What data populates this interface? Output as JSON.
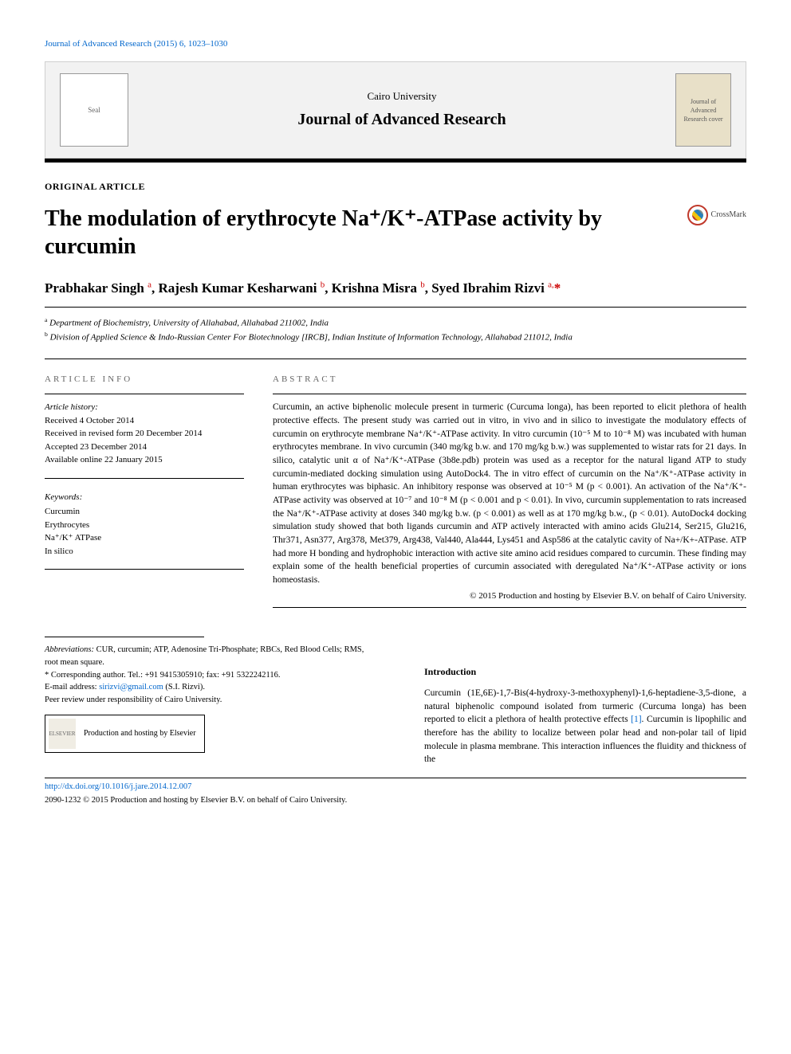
{
  "running_head": "Journal of Advanced Research (2015) 6, 1023–1030",
  "masthead": {
    "university": "Cairo University",
    "journal": "Journal of Advanced Research",
    "left_logo_alt": "Seal",
    "right_logo_alt": "Journal of Advanced Research cover"
  },
  "article_type": "ORIGINAL ARTICLE",
  "title": "The modulation of erythrocyte Na⁺/K⁺-ATPase activity by curcumin",
  "crossmark_label": "CrossMark",
  "authors_html": "Prabhakar Singh <sup>a</sup>, Rajesh Kumar Kesharwani <sup>b</sup>, Krishna Misra <sup>b</sup>, Syed Ibrahim Rizvi <sup>a,</sup><span class='star'>*</span>",
  "affiliations": [
    {
      "marker": "a",
      "text": "Department of Biochemistry, University of Allahabad, Allahabad 211002, India"
    },
    {
      "marker": "b",
      "text": "Division of Applied Science & Indo-Russian Center For Biotechnology [IRCB], Indian Institute of Information Technology, Allahabad 211012, India"
    }
  ],
  "article_info_head": "ARTICLE INFO",
  "history_label": "Article history:",
  "history": [
    "Received 4 October 2014",
    "Received in revised form 20 December 2014",
    "Accepted 23 December 2014",
    "Available online 22 January 2015"
  ],
  "keywords_label": "Keywords:",
  "keywords": [
    "Curcumin",
    "Erythrocytes",
    "Na⁺/K⁺ ATPase",
    "In silico"
  ],
  "abstract_head": "ABSTRACT",
  "abstract": "Curcumin, an active biphenolic molecule present in turmeric (Curcuma longa), has been reported to elicit plethora of health protective effects. The present study was carried out in vitro, in vivo and in silico to investigate the modulatory effects of curcumin on erythrocyte membrane Na⁺/K⁺-ATPase activity. In vitro curcumin (10⁻⁵ M to 10⁻⁸ M) was incubated with human erythrocytes membrane. In vivo curcumin (340 mg/kg b.w. and 170 mg/kg b.w.) was supplemented to wistar rats for 21 days. In silico, catalytic unit α of Na⁺/K⁺-ATPase (3b8e.pdb) protein was used as a receptor for the natural ligand ATP to study curcumin-mediated docking simulation using AutoDock4. The in vitro effect of curcumin on the Na⁺/K⁺-ATPase activity in human erythrocytes was biphasic. An inhibitory response was observed at 10⁻⁵ M (p < 0.001). An activation of the Na⁺/K⁺-ATPase activity was observed at 10⁻⁷ and 10⁻⁸ M (p < 0.001 and p < 0.01). In vivo, curcumin supplementation to rats increased the Na⁺/K⁺-ATPase activity at doses 340 mg/kg b.w. (p < 0.001) as well as at 170 mg/kg b.w., (p < 0.01). AutoDock4 docking simulation study showed that both ligands curcumin and ATP actively interacted with amino acids Glu214, Ser215, Glu216, Thr371, Asn377, Arg378, Met379, Arg438, Val440, Ala444, Lys451 and Asp586 at the catalytic cavity of Na+/K+-ATPase. ATP had more H bonding and hydrophobic interaction with active site amino acid residues compared to curcumin. These finding may explain some of the health beneficial properties of curcumin associated with deregulated Na⁺/K⁺-ATPase activity or ions homeostasis.",
  "copyright": "© 2015 Production and hosting by Elsevier B.V. on behalf of Cairo University.",
  "footnotes": {
    "abbrev_label": "Abbreviations:",
    "abbrev": "CUR, curcumin; ATP, Adenosine Tri-Phosphate; RBCs, Red Blood Cells; RMS, root mean square.",
    "corr": "* Corresponding author. Tel.: +91 9415305910; fax: +91 5322242116.",
    "email_label": "E-mail address:",
    "email": "sirizvi@gmail.com",
    "email_owner": "(S.I. Rizvi).",
    "peer": "Peer review under responsibility of Cairo University.",
    "elsevier": "Production and hosting by Elsevier"
  },
  "intro_head": "Introduction",
  "intro": "Curcumin (1E,6E)-1,7-Bis(4-hydroxy-3-methoxyphenyl)-1,6-heptadiene-3,5-dione, a natural biphenolic compound isolated from turmeric (Curcuma longa) has been reported to elicit a plethora of health protective effects [1]. Curcumin is lipophilic and therefore has the ability to localize between polar head and non-polar tail of lipid molecule in plasma membrane. This interaction influences the fluidity and thickness of the",
  "doi": "http://dx.doi.org/10.1016/j.jare.2014.12.007",
  "issn_line": "2090-1232 © 2015 Production and hosting by Elsevier B.V. on behalf of Cairo University.",
  "colors": {
    "link": "#0066cc",
    "masthead_bg": "#f2f2f2",
    "red_marker": "#c00"
  }
}
